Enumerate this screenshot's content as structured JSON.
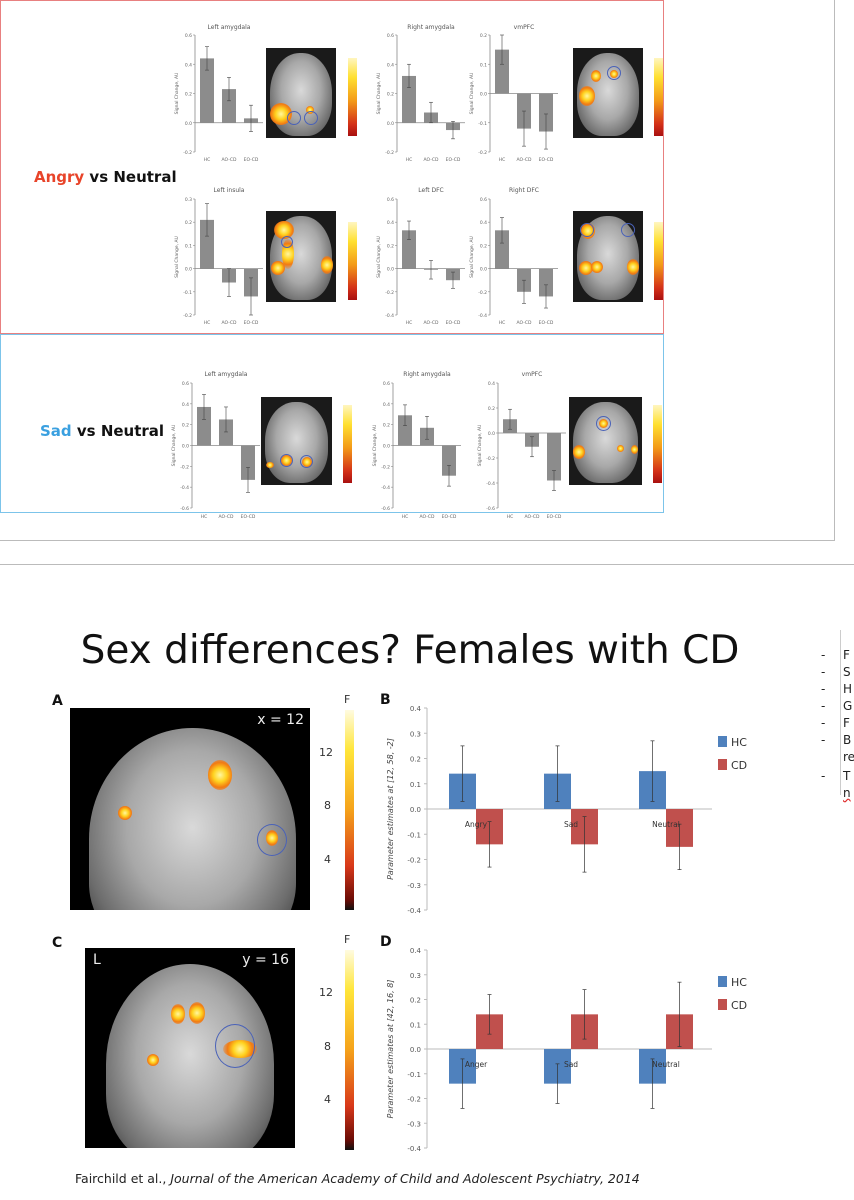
{
  "slide1": {
    "angry_label": {
      "emotion": "Angry",
      "rest": " vs Neutral",
      "color": "#e8442a"
    },
    "sad_label": {
      "emotion": "Sad",
      "rest": " vs Neutral",
      "color": "#3aa0e0"
    },
    "ylabel": "Signal Change, AU",
    "colorbar_label": "F",
    "angry_panels": [
      {
        "title": "Left amygdala",
        "ylim": [
          -0.2,
          0.6
        ],
        "ticks": [
          "0.6",
          "0.4",
          "0.2",
          "0.0",
          "-0.2"
        ],
        "categories": [
          "HC",
          "AO-CD",
          "EO-CD"
        ],
        "values": [
          0.44,
          0.23,
          0.03
        ],
        "errors": [
          0.08,
          0.08,
          0.09
        ]
      },
      {
        "title": "Right amygdala",
        "ylim": [
          -0.2,
          0.6
        ],
        "ticks": [
          "0.6",
          "0.4",
          "0.2",
          "0.0",
          "-0.2"
        ],
        "categories": [
          "HC",
          "AO-CD",
          "EO-CD"
        ],
        "values": [
          0.32,
          0.07,
          -0.05
        ],
        "errors": [
          0.08,
          0.07,
          0.06
        ]
      },
      {
        "title": "vmPFC",
        "ylim": [
          -0.2,
          0.2
        ],
        "ticks": [
          "0.2",
          "0.1",
          "0.0",
          "-0.1",
          "-0.2"
        ],
        "categories": [
          "HC",
          "AO-CD",
          "EO-CD"
        ],
        "values": [
          0.15,
          -0.12,
          -0.13
        ],
        "errors": [
          0.05,
          0.06,
          0.06
        ]
      },
      {
        "title": "Left insula",
        "ylim": [
          -0.2,
          0.3
        ],
        "ticks": [
          "0.3",
          "0.2",
          "0.1",
          "0.0",
          "-0.1",
          "-0.2"
        ],
        "categories": [
          "HC",
          "AO-CD",
          "EO-CD"
        ],
        "values": [
          0.21,
          -0.06,
          -0.12
        ],
        "errors": [
          0.07,
          0.06,
          0.08
        ]
      },
      {
        "title": "Left DFC",
        "ylim": [
          -0.4,
          0.6
        ],
        "ticks": [
          "0.6",
          "0.4",
          "0.2",
          "0.0",
          "-0.2",
          "-0.4"
        ],
        "categories": [
          "HC",
          "AO-CD",
          "EO-CD"
        ],
        "values": [
          0.33,
          -0.01,
          -0.1
        ],
        "errors": [
          0.08,
          0.08,
          0.07
        ]
      },
      {
        "title": "Right DFC",
        "ylim": [
          -0.4,
          0.6
        ],
        "ticks": [
          "0.6",
          "0.4",
          "0.2",
          "0.0",
          "-0.2",
          "-0.4"
        ],
        "categories": [
          "HC",
          "AO-CD",
          "EO-CD"
        ],
        "values": [
          0.33,
          -0.2,
          -0.24
        ],
        "errors": [
          0.11,
          0.1,
          0.1
        ]
      }
    ],
    "sad_panels": [
      {
        "title": "Left amygdala",
        "ylim": [
          -0.6,
          0.6
        ],
        "ticks": [
          "0.6",
          "0.4",
          "0.2",
          "0.0",
          "-0.2",
          "-0.4",
          "-0.6"
        ],
        "categories": [
          "HC",
          "AO-CD",
          "EO-CD"
        ],
        "values": [
          0.37,
          0.25,
          -0.33
        ],
        "errors": [
          0.12,
          0.12,
          0.12
        ]
      },
      {
        "title": "Right amygdala",
        "ylim": [
          -0.6,
          0.6
        ],
        "ticks": [
          "0.6",
          "0.4",
          "0.2",
          "0.0",
          "-0.2",
          "-0.4",
          "-0.6"
        ],
        "categories": [
          "HC",
          "AO-CD",
          "EO-CD"
        ],
        "values": [
          0.29,
          0.17,
          -0.29
        ],
        "errors": [
          0.1,
          0.11,
          0.1
        ]
      },
      {
        "title": "vmPFC",
        "ylim": [
          -0.6,
          0.4
        ],
        "ticks": [
          "0.4",
          "0.2",
          "0.0",
          "-0.2",
          "-0.4",
          "-0.6"
        ],
        "categories": [
          "HC",
          "AO-CD",
          "EO-CD"
        ],
        "values": [
          0.11,
          -0.11,
          -0.38
        ],
        "errors": [
          0.08,
          0.08,
          0.08
        ]
      }
    ]
  },
  "slide2": {
    "title": "Sex differences? Females with CD",
    "panel_a": {
      "letter": "A",
      "slice": "x = 12",
      "colorbar_label": "F",
      "colorbar_ticks": [
        "12",
        "8",
        "4"
      ]
    },
    "panel_c": {
      "letter": "C",
      "side": "L",
      "slice": "y = 16",
      "colorbar_label": "F",
      "colorbar_ticks": [
        "12",
        "8",
        "4"
      ]
    },
    "bullets": [
      "F",
      "S",
      "H",
      "G",
      "F",
      "B",
      "re",
      "T",
      "n"
    ],
    "citation": {
      "authors": "Fairchild et al., ",
      "journal": "Journal of the American Academy of Child and Adolescent Psychiatry, 2014"
    }
  },
  "chart_data": [
    {
      "type": "bar",
      "letter": "B",
      "categories": [
        "Angry",
        "Sad",
        "Neutral"
      ],
      "ylabel": "Parameter estimates at [12, 58, -2]",
      "ylim": [
        -0.4,
        0.4
      ],
      "ticks": [
        "0.4",
        "0.3",
        "0.2",
        "0.1",
        "0.0",
        "-0.1",
        "-0.2",
        "-0.3",
        "-0.4"
      ],
      "legend": "right",
      "series": [
        {
          "name": "HC",
          "color": "#4f81bd",
          "values": [
            0.14,
            0.14,
            0.15
          ],
          "errors": [
            0.11,
            0.11,
            0.12
          ]
        },
        {
          "name": "CD",
          "color": "#c0504d",
          "values": [
            -0.14,
            -0.14,
            -0.15
          ],
          "errors": [
            0.09,
            0.11,
            0.09
          ]
        }
      ]
    },
    {
      "type": "bar",
      "letter": "D",
      "categories": [
        "Anger",
        "Sad",
        "Neutral"
      ],
      "ylabel": "Parameter estimates at [42, 16, 8]",
      "ylim": [
        -0.4,
        0.4
      ],
      "ticks": [
        "0.4",
        "0.3",
        "0.2",
        "0.1",
        "0.0",
        "-0.1",
        "-0.2",
        "-0.3",
        "-0.4"
      ],
      "legend": "right",
      "series": [
        {
          "name": "HC",
          "color": "#4f81bd",
          "values": [
            -0.14,
            -0.14,
            -0.14
          ],
          "errors": [
            0.1,
            0.08,
            0.1
          ]
        },
        {
          "name": "CD",
          "color": "#c0504d",
          "values": [
            0.14,
            0.14,
            0.14
          ],
          "errors": [
            0.08,
            0.1,
            0.13
          ]
        }
      ]
    }
  ]
}
